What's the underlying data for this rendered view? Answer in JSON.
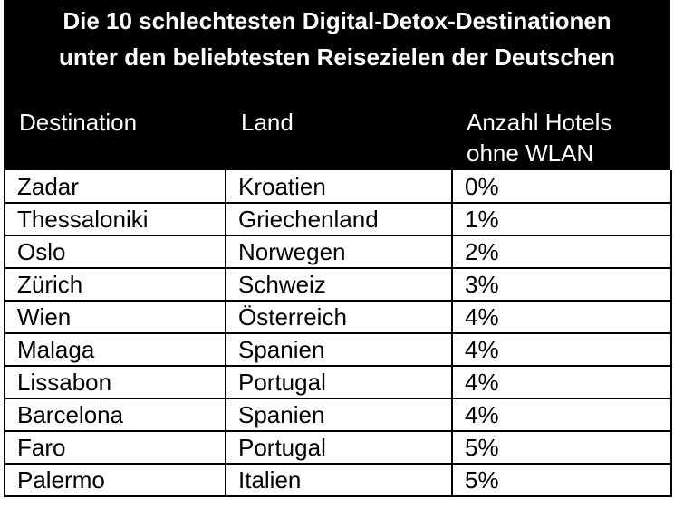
{
  "title": {
    "line1": "Die 10 schlechtesten Digital-Detox-Destinationen",
    "line2": "unter den beliebtesten Reisezielen der Deutschen"
  },
  "columns": {
    "destination": "Destination",
    "country": "Land",
    "hotels_line1": "Anzahl Hotels",
    "hotels_line2": "ohne WLAN"
  },
  "rows": [
    {
      "destination": "Zadar",
      "country": "Kroatien",
      "percent": "0%"
    },
    {
      "destination": "Thessaloniki",
      "country": "Griechenland",
      "percent": "1%"
    },
    {
      "destination": "Oslo",
      "country": "Norwegen",
      "percent": "2%"
    },
    {
      "destination": "Zürich",
      "country": "Schweiz",
      "percent": "3%"
    },
    {
      "destination": "Wien",
      "country": "Österreich",
      "percent": "4%"
    },
    {
      "destination": "Malaga",
      "country": "Spanien",
      "percent": "4%"
    },
    {
      "destination": "Lissabon",
      "country": "Portugal",
      "percent": "4%"
    },
    {
      "destination": "Barcelona",
      "country": "Spanien",
      "percent": "4%"
    },
    {
      "destination": "Faro",
      "country": "Portugal",
      "percent": "5%"
    },
    {
      "destination": "Palermo",
      "country": "Italien",
      "percent": "5%"
    }
  ],
  "colors": {
    "header_background": "#000000",
    "header_text": "#ffffff",
    "grid_lines": "#000000"
  }
}
